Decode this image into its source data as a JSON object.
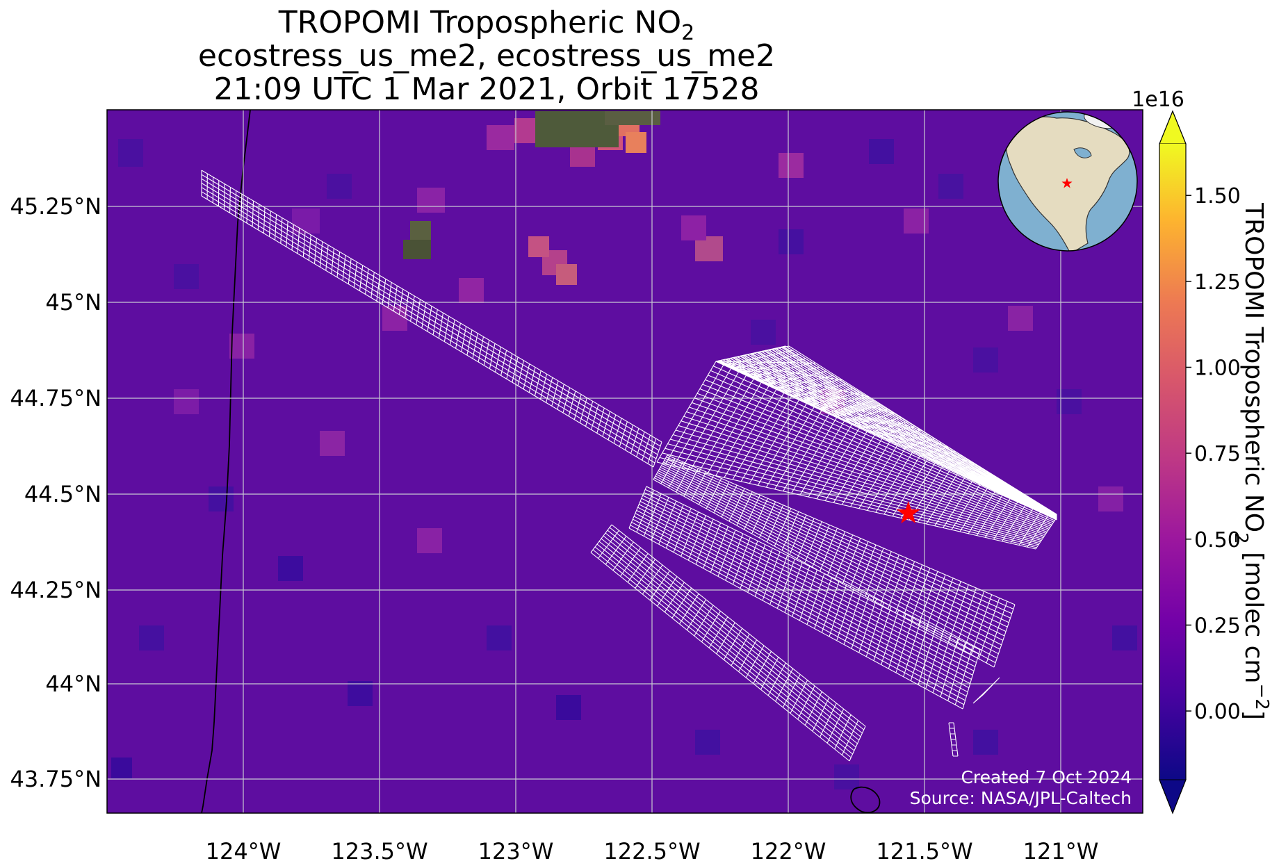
{
  "title": {
    "line1_prefix": "TROPOMI Tropospheric NO",
    "line1_sub": "2",
    "line2": "ecostress_us_me2, ecostress_us_me2",
    "line3": "21:09 UTC 1 Mar 2021, Orbit 17528"
  },
  "map": {
    "lon_ticks": [
      "124°W",
      "123.5°W",
      "123°W",
      "122.5°W",
      "122°W",
      "121.5°W",
      "121°W"
    ],
    "lat_ticks": [
      "45.25°N",
      "45°N",
      "44.75°N",
      "44.5°N",
      "44.25°N",
      "44°N",
      "43.75°N"
    ],
    "lon_range": [
      -124.5,
      -120.7
    ],
    "lat_range": [
      43.67,
      45.5
    ],
    "background_color": "#5e0da0",
    "grid_color": "#c8c8d2",
    "site_marker": {
      "lon": -121.56,
      "lat": 44.45,
      "color": "#ff0000",
      "symbol": "star"
    },
    "credit_line1": "Created 7 Oct 2024",
    "credit_line2": "Source: NASA/JPL-Caltech"
  },
  "colorbar": {
    "exponent_label": "1e16",
    "label_prefix": "TROPOMI Tropospheric NO",
    "label_sub": "2",
    "label_mid": " [molec cm",
    "label_sup": "−2",
    "label_suffix": "]",
    "ticks": [
      "0.00",
      "0.25",
      "0.50",
      "0.75",
      "1.00",
      "1.25",
      "1.50"
    ],
    "tick_values": [
      0.0,
      0.25,
      0.5,
      0.75,
      1.0,
      1.25,
      1.5
    ],
    "range": [
      -0.2,
      1.65
    ],
    "colormap": "plasma",
    "extend": "both"
  },
  "inset_globe": {
    "ocean_color": "#7fb0d0",
    "land_color": "#e5dcc0",
    "marker_color": "#ff0000"
  }
}
